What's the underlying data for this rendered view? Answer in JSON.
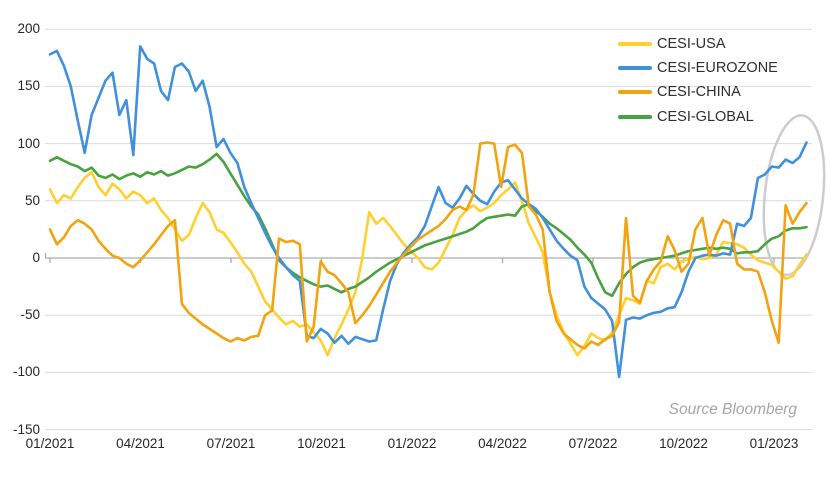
{
  "chart_data": {
    "type": "line",
    "title": "",
    "source": "Source Bloomberg",
    "grid": "horizontal",
    "legend_position": "top-right",
    "x_axis": {
      "labels": [
        "01/2021",
        "04/2021",
        "07/2021",
        "10/2021",
        "01/2022",
        "04/2022",
        "07/2022",
        "10/2022",
        "01/2023"
      ],
      "unit": "weekly points, wk0 = 01/2021, 13.05 weeks per quarter tick"
    },
    "y_axis": {
      "min": -150,
      "max": 200,
      "step": 50,
      "ticks": [
        200,
        150,
        100,
        50,
        0,
        -50,
        -100,
        -150
      ]
    },
    "series": [
      {
        "name": "CESI-USA",
        "color": "#FFD02F",
        "z": 1,
        "values": [
          60,
          48,
          55,
          52,
          62,
          70,
          75,
          62,
          55,
          65,
          60,
          52,
          58,
          55,
          48,
          52,
          42,
          35,
          25,
          15,
          20,
          35,
          48,
          40,
          25,
          22,
          14,
          5,
          -5,
          -12,
          -25,
          -38,
          -45,
          -52,
          -58,
          -55,
          -60,
          -58,
          -65,
          -72,
          -85,
          -70,
          -58,
          -45,
          -30,
          0,
          40,
          30,
          35,
          28,
          20,
          12,
          6,
          0,
          -8,
          -10,
          -4,
          8,
          20,
          35,
          42,
          46,
          41,
          44,
          48,
          55,
          60,
          66,
          50,
          30,
          18,
          5,
          -30,
          -50,
          -65,
          -75,
          -85,
          -77,
          -66,
          -70,
          -72,
          -65,
          -50,
          -35,
          -37,
          -40,
          -20,
          -22,
          -8,
          -5,
          -10,
          -3,
          -1,
          1,
          -1,
          0,
          3,
          14,
          13,
          12,
          9,
          3,
          -2,
          -4,
          -6,
          -12,
          -18,
          -16,
          -6,
          3
        ]
      },
      {
        "name": "CESI-EUROZONE",
        "color": "#4190DB",
        "z": 3,
        "values": [
          178,
          181,
          168,
          150,
          120,
          92,
          125,
          140,
          155,
          162,
          125,
          138,
          90,
          185,
          174,
          170,
          146,
          138,
          167,
          170,
          163,
          146,
          155,
          132,
          97,
          104,
          92,
          83,
          62,
          48,
          35,
          22,
          10,
          0,
          -8,
          -15,
          -20,
          -68,
          -70,
          -62,
          -66,
          -74,
          -68,
          -75,
          -69,
          -71,
          -73,
          -72,
          -45,
          -20,
          -5,
          5,
          12,
          18,
          28,
          45,
          62,
          48,
          44,
          52,
          63,
          56,
          50,
          47,
          58,
          66,
          68,
          60,
          52,
          47,
          43,
          35,
          25,
          15,
          8,
          2,
          -2,
          -25,
          -35,
          -40,
          -45,
          -55,
          -104,
          -54,
          -52,
          -53,
          -50,
          -48,
          -47,
          -44,
          -43,
          -30,
          -12,
          0,
          2,
          3,
          2,
          4,
          3,
          30,
          28,
          35,
          70,
          73,
          80,
          79,
          86,
          83,
          88,
          101
        ]
      },
      {
        "name": "CESI-CHINA",
        "color": "#F2A30F",
        "z": 4,
        "values": [
          25,
          12,
          18,
          28,
          33,
          30,
          25,
          15,
          8,
          2,
          0,
          -5,
          -8,
          -2,
          5,
          12,
          20,
          28,
          33,
          -40,
          -48,
          -53,
          -58,
          -62,
          -66,
          -70,
          -73,
          -70,
          -72,
          -69,
          -68,
          -50,
          -46,
          17,
          14,
          15,
          12,
          -73,
          -60,
          -3,
          -12,
          -15,
          -22,
          -30,
          -57,
          -50,
          -42,
          -32,
          -22,
          -12,
          -4,
          3,
          10,
          16,
          20,
          24,
          28,
          34,
          42,
          45,
          42,
          55,
          100,
          101,
          100,
          62,
          97,
          99,
          92,
          45,
          38,
          25,
          -30,
          -55,
          -66,
          -71,
          -76,
          -79,
          -73,
          -76,
          -71,
          -68,
          -56,
          35,
          -33,
          -39,
          -20,
          -10,
          -3,
          19,
          7,
          -12,
          -5,
          25,
          35,
          2,
          20,
          33,
          30,
          -5,
          -10,
          -10,
          -12,
          -30,
          -55,
          -74,
          46,
          30,
          40,
          48
        ]
      },
      {
        "name": "CESI-GLOBAL",
        "color": "#48A23F",
        "z": 2,
        "values": [
          85,
          88,
          85,
          82,
          80,
          76,
          79,
          72,
          70,
          73,
          69,
          72,
          74,
          71,
          75,
          73,
          76,
          72,
          74,
          77,
          80,
          79,
          82,
          86,
          91,
          84,
          74,
          64,
          54,
          45,
          38,
          26,
          12,
          -2,
          -8,
          -13,
          -17,
          -20,
          -23,
          -25,
          -24,
          -27,
          -30,
          -27,
          -25,
          -21,
          -17,
          -12,
          -8,
          -4,
          -1,
          2,
          5,
          8,
          11,
          13,
          15,
          17,
          19,
          21,
          23,
          26,
          31,
          35,
          36,
          37,
          38,
          37,
          45,
          47,
          41,
          36,
          30,
          26,
          21,
          16,
          9,
          3,
          -4,
          -18,
          -30,
          -33,
          -22,
          -14,
          -8,
          -4,
          -2,
          -1,
          0,
          1,
          2,
          4,
          6,
          7,
          8,
          9,
          8,
          9,
          8,
          4,
          5,
          5,
          6,
          12,
          17,
          19,
          24,
          26,
          26,
          27
        ]
      }
    ],
    "annotation": {
      "shape": "ellipse",
      "center_week": 107.2,
      "center_value": 55,
      "radius_weeks": 4.2,
      "radius_value": 70,
      "tilt_deg": 6,
      "color": "#cccccc"
    },
    "colors": {
      "background": "#ffffff",
      "grid": "#dbdbdb",
      "zero_axis": "#acacac",
      "tick_label": "#262626",
      "legend_text": "#2e2e2e",
      "source_text": "#a6a6a6"
    }
  }
}
